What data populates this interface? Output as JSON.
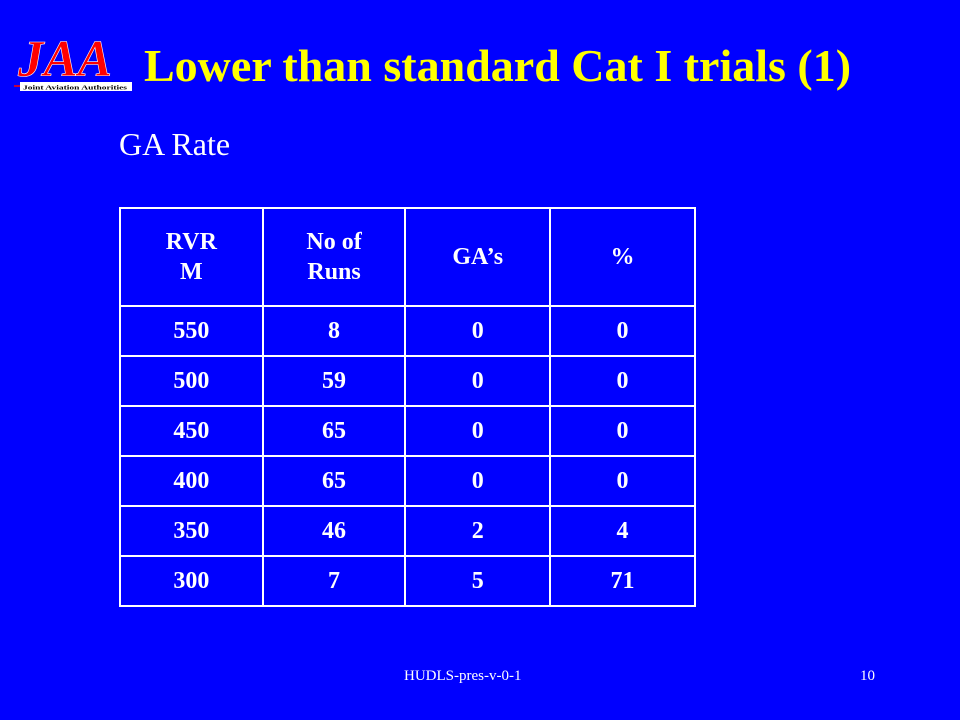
{
  "slide": {
    "title": "Lower than standard Cat I trials (1)",
    "subtitle": "GA Rate",
    "logo_text": "JAA",
    "logo_tagline": "Joint Aviation Authorities"
  },
  "table": {
    "headers": [
      {
        "line1": "RVR",
        "line2": "M"
      },
      {
        "line1": "No of",
        "line2": "Runs"
      },
      {
        "line1": "GA’s",
        "line2": ""
      },
      {
        "line1": "%",
        "line2": ""
      }
    ],
    "rows": [
      [
        "550",
        "8",
        "0",
        "0"
      ],
      [
        "500",
        "59",
        "0",
        "0"
      ],
      [
        "450",
        "65",
        "0",
        "0"
      ],
      [
        "400",
        "65",
        "0",
        "0"
      ],
      [
        "350",
        "46",
        "2",
        "4"
      ],
      [
        "300",
        "7",
        "5",
        "71"
      ]
    ]
  },
  "footer": {
    "center": "HUDLS-pres-v-0-1",
    "page_number": "10"
  },
  "colors": {
    "background": "#0000ff",
    "title": "#ffff00",
    "text": "#ffffff",
    "logo": "#ff0000"
  }
}
